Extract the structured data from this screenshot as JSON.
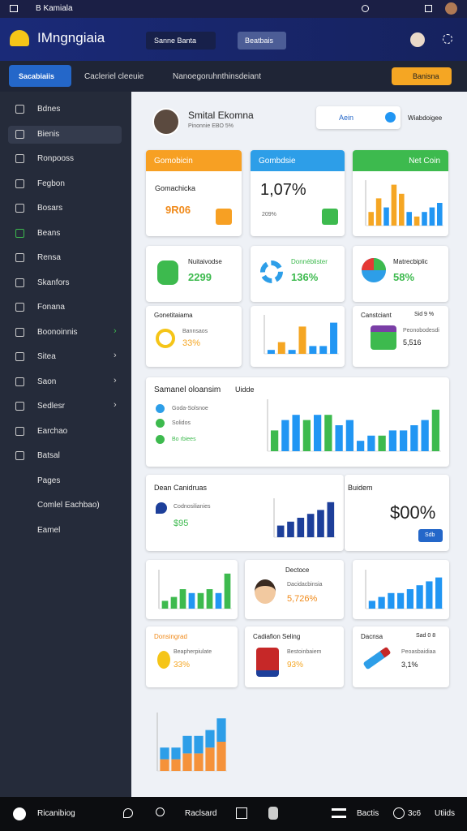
{
  "topbar": {
    "title": "B Kamiala"
  },
  "header": {
    "brand": "IMngngiaia",
    "dropdown": "Sanne Banta",
    "button": "Beatbais"
  },
  "tabs": {
    "items": [
      "Sacabiaiis",
      "Cacleriel cleeuie",
      "Nanoegoruhnthinsdeiant"
    ],
    "action": "Banisna"
  },
  "sidebar": {
    "items": [
      "Bdnes",
      "Bienis",
      "Ronpooss",
      "Fegbon",
      "Bosars",
      "Beans",
      "Rensa",
      "Skanfors",
      "Fonana",
      "Boonoinnis",
      "Sitea",
      "Saon",
      "Sedlesr",
      "Earchao",
      "Batsal",
      "Pages",
      "Comlel Eachbao)",
      "Eamel"
    ]
  },
  "profile": {
    "name": "Smital Ekomna",
    "subtitle": "Pinonnie EBO 5%",
    "search": "Aein",
    "link": "Wiabdoigee"
  },
  "cards": {
    "c1": {
      "header": "Gomobicin",
      "label": "Gomachicka",
      "value": "9R06"
    },
    "c2": {
      "header": "Gombdsie",
      "value": "1,07%",
      "sub": "209%"
    },
    "c3": {
      "header": "Net Coin"
    },
    "c4": {
      "label": "Nuitaivodse",
      "value": "2299"
    },
    "c5": {
      "label": "Donnéblister",
      "value": "136%"
    },
    "c6": {
      "label": "Matrecbiplic",
      "value": "58%"
    },
    "c7": {
      "label": "Gonetitaiama",
      "sub": "Bannsaos",
      "value": "33%"
    },
    "c9": {
      "label": "Canstciant",
      "tag": "Sid 9 %",
      "sub": "Peonobodesdi",
      "value": "5,516"
    },
    "summary": {
      "title": "Samanel oloansim",
      "tab": "Uidde",
      "legend": [
        "Goda-Solsnoe",
        "Solidos",
        "Bo rbiees"
      ]
    },
    "dean": {
      "title": "Dean Canidruas",
      "sub": "Codnosilianies",
      "value": "$95"
    },
    "big": {
      "label": "Buidem",
      "value": "$00%",
      "button": "Sdb"
    },
    "dectoce": {
      "title": "Dectoce",
      "sub": "Dacidacbinsia",
      "value": "5,726%"
    },
    "don": {
      "title": "Donsingrad",
      "sub": "Beapherpiulate",
      "value": "33%"
    },
    "cad": {
      "title": "Cadiafion Seling",
      "sub": "Bestoinbaiem",
      "value": "93%"
    },
    "dac": {
      "title": "Dacnsa",
      "tag": "Sad 0 8",
      "sub": "Peoasbaidiaa",
      "value": "3,1%"
    }
  },
  "charts": {
    "netcoin": {
      "type": "bar",
      "ylim": [
        0,
        10
      ],
      "values": [
        3,
        6,
        4,
        9,
        7,
        3,
        2,
        3,
        4,
        5
      ],
      "colors": [
        "#f5a623",
        "#f5a623",
        "#2196f3",
        "#f5a623",
        "#f5a623",
        "#2196f3",
        "#f5a623",
        "#2196f3",
        "#2196f3",
        "#2196f3"
      ]
    },
    "mid": {
      "type": "bar",
      "ylim": [
        0,
        10
      ],
      "values": [
        1,
        3,
        1,
        7,
        2,
        2,
        8
      ],
      "colors": [
        "#2196f3",
        "#f5a623",
        "#2196f3",
        "#f5a623",
        "#2196f3",
        "#2196f3",
        "#2196f3"
      ]
    },
    "summary": {
      "type": "bar",
      "ylim": [
        0,
        10
      ],
      "values": [
        4,
        6,
        7,
        6,
        7,
        7,
        5,
        6,
        2,
        3,
        3,
        4,
        4,
        5,
        6,
        8
      ],
      "colors": [
        "#3dba4e",
        "#2196f3",
        "#2196f3",
        "#3dba4e",
        "#2196f3",
        "#3dba4e",
        "#2196f3",
        "#2196f3",
        "#2196f3",
        "#2196f3",
        "#3dba4e",
        "#2196f3",
        "#2196f3",
        "#2196f3",
        "#2196f3",
        "#3dba4e"
      ]
    },
    "dean": {
      "type": "bar",
      "ylim": [
        0,
        10
      ],
      "values": [
        3,
        4,
        5,
        6,
        7,
        9
      ],
      "colors": [
        "#1d3f9a",
        "#1d3f9a",
        "#1d3f9a",
        "#1d3f9a",
        "#1d3f9a",
        "#1d3f9a"
      ]
    },
    "green": {
      "type": "bar",
      "ylim": [
        0,
        10
      ],
      "values": [
        2,
        3,
        5,
        4,
        4,
        5,
        4,
        9
      ],
      "colors": [
        "#3dba4e",
        "#3dba4e",
        "#3dba4e",
        "#2196f3",
        "#3dba4e",
        "#3dba4e",
        "#2196f3",
        "#3dba4e"
      ]
    },
    "blue": {
      "type": "bar",
      "ylim": [
        0,
        10
      ],
      "values": [
        2,
        3,
        4,
        4,
        5,
        6,
        7,
        8
      ],
      "colors": [
        "#2196f3",
        "#2196f3",
        "#2196f3",
        "#2196f3",
        "#2196f3",
        "#2196f3",
        "#2196f3",
        "#2196f3"
      ]
    },
    "stacked": {
      "type": "stacked",
      "ylim": [
        0,
        10
      ],
      "series": [
        {
          "color": "#f5923a",
          "values": [
            2,
            2,
            3,
            3,
            4,
            5
          ]
        },
        {
          "color": "#2d9ee8",
          "values": [
            2,
            2,
            3,
            3,
            3,
            4
          ]
        }
      ]
    }
  },
  "bottombar": {
    "items": [
      "Ricanibiog",
      "Raclsard",
      "Bactis",
      "3c6",
      "Utiids"
    ]
  }
}
